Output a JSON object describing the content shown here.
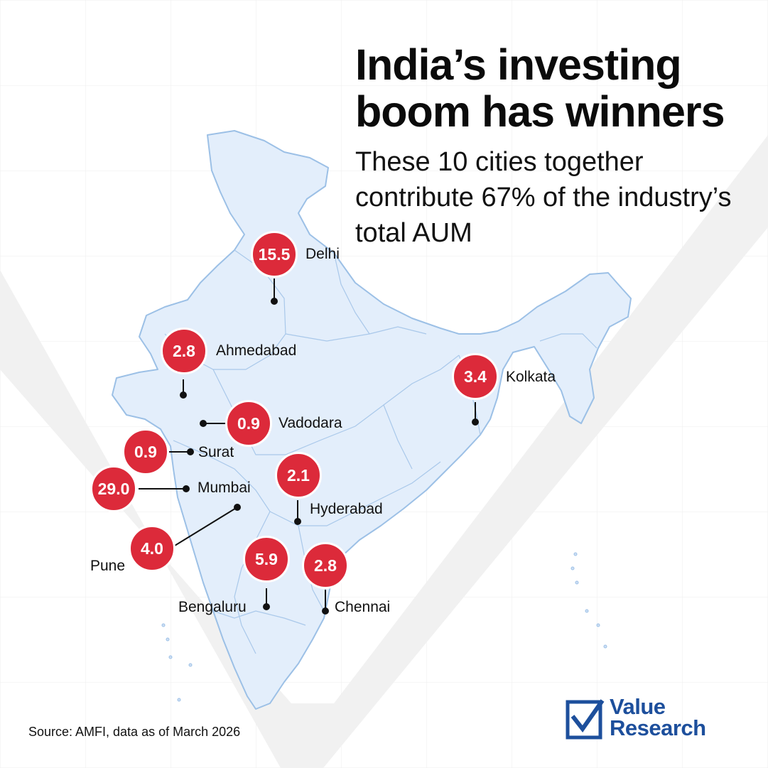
{
  "title": "India’s investing boom has winners",
  "subtitle": "These 10 cities together contribute 67% of the industry’s total AUM",
  "source": "Source: AMFI, data as of March 2026",
  "logo": {
    "line1": "Value",
    "line2": "Research",
    "icon": "checkbox-check-icon"
  },
  "colors": {
    "bubble": "#dc2a3a",
    "map_fill": "#e3eefb",
    "map_border": "#9cc0e6",
    "brand": "#1d4f9c"
  },
  "cities": [
    {
      "name": "Delhi",
      "value": "15.5"
    },
    {
      "name": "Ahmedabad",
      "value": "2.8"
    },
    {
      "name": "Kolkata",
      "value": "3.4"
    },
    {
      "name": "Vadodara",
      "value": "0.9"
    },
    {
      "name": "Surat",
      "value": "0.9"
    },
    {
      "name": "Mumbai",
      "value": "29.0"
    },
    {
      "name": "Hyderabad",
      "value": "2.1"
    },
    {
      "name": "Pune",
      "value": "4.0"
    },
    {
      "name": "Bengaluru",
      "value": "5.9"
    },
    {
      "name": "Chennai",
      "value": "2.8"
    }
  ]
}
